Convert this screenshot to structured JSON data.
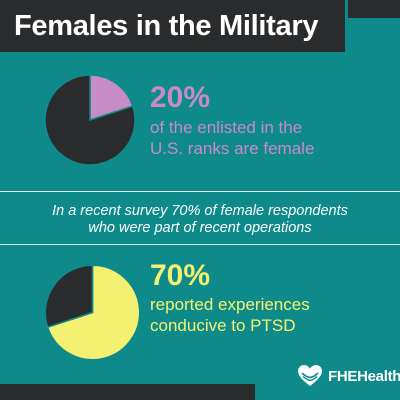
{
  "title": "Females in the Military",
  "colors": {
    "background": "#0f8a8a",
    "dark": "#2a2b2d",
    "pink": "#c78bc6",
    "yellow": "#f4f172",
    "white": "#ffffff"
  },
  "stats": [
    {
      "value": "20%",
      "line1": "of the enlisted in the",
      "line2": "U.S. ranks are female"
    },
    {
      "value": "70%",
      "line1": "reported experiences",
      "line2": "conducive to PTSD"
    }
  ],
  "survey_line1": "In a recent survey 70% of female respondents",
  "survey_line2": "who were part of recent operations",
  "logo": {
    "text": "FHEHealth",
    "icon": "heart-hands-icon"
  },
  "chart_data": [
    {
      "type": "pie",
      "slices": [
        {
          "value": 20,
          "color": "#c78bc6"
        },
        {
          "value": 80,
          "color": "#2a2b2d"
        }
      ]
    },
    {
      "type": "pie",
      "slices": [
        {
          "value": 70,
          "color": "#f4f172"
        },
        {
          "value": 30,
          "color": "#2a2b2d"
        }
      ]
    }
  ]
}
